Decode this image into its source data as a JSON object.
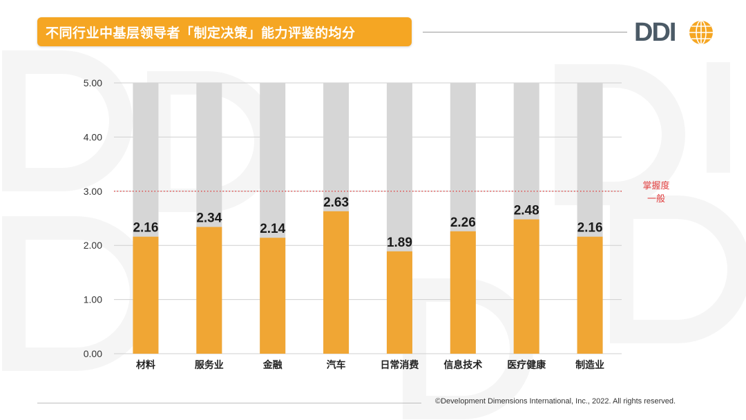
{
  "header": {
    "title": "不同行业中基层领导者「制定决策」能力评鉴的均分",
    "logo_text": "DDI",
    "logo_icon": "globe-icon"
  },
  "colors": {
    "accent": "#F5A623",
    "bar_fill": "#F0A634",
    "bar_background": "#D6D6D6",
    "threshold": "#E03A3A",
    "logo": "#4B5A66"
  },
  "chart_data": {
    "type": "bar",
    "categories": [
      "材料",
      "服务业",
      "金融",
      "汽车",
      "日常消费",
      "信息技术",
      "医疗健康",
      "制造业"
    ],
    "values": [
      2.16,
      2.34,
      2.14,
      2.63,
      1.89,
      2.26,
      2.48,
      2.16
    ],
    "value_labels": [
      "2.16",
      "2.34",
      "2.14",
      "2.63",
      "1.89",
      "2.26",
      "2.48",
      "2.16"
    ],
    "ylim": [
      0,
      5
    ],
    "yticks": [
      "0.00",
      "1.00",
      "2.00",
      "3.00",
      "4.00",
      "5.00"
    ],
    "background_bar_max": 5,
    "grid": true,
    "reference_line": {
      "value": 3.0,
      "label_lines": [
        "掌握度",
        "一般"
      ],
      "style": "dotted"
    }
  },
  "footer": {
    "copyright": "©Development Dimensions International, Inc., 2022. All rights reserved."
  }
}
